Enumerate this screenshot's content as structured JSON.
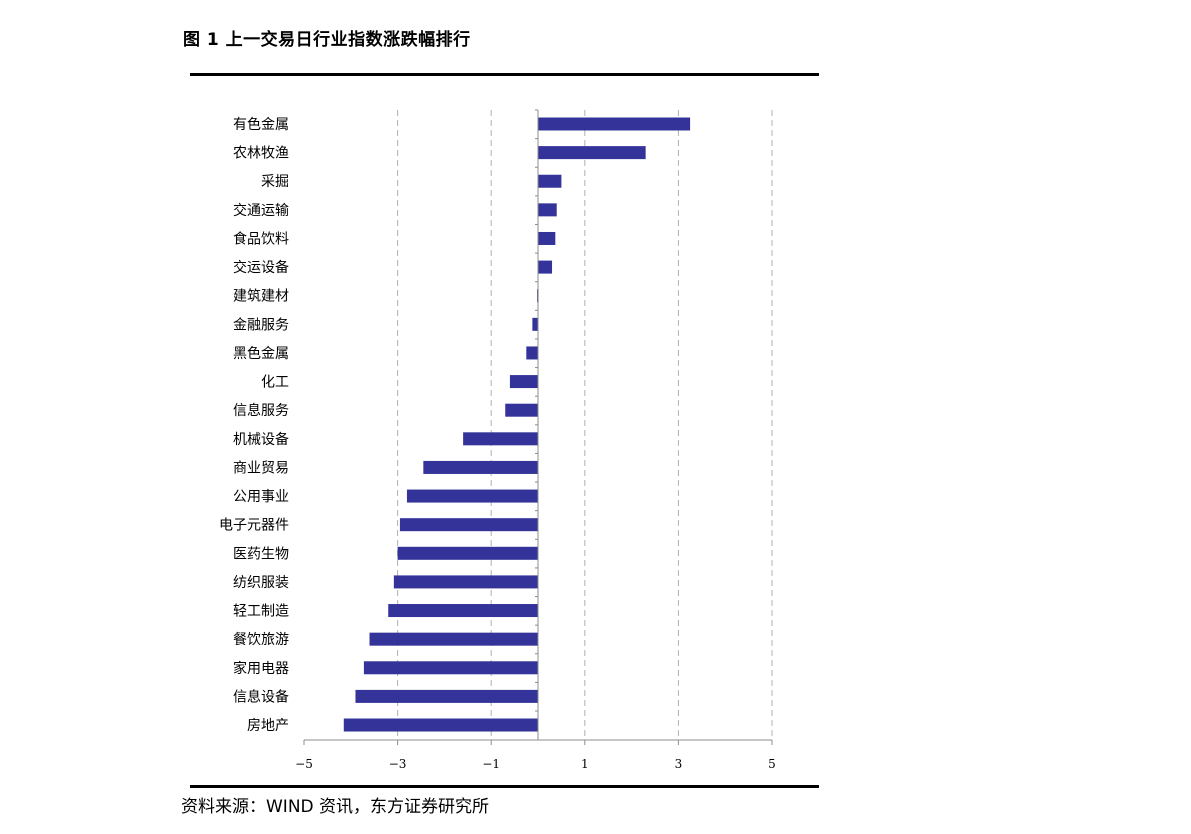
{
  "header": {
    "title": "图 1  上一交易日行业指数涨跌幅排行"
  },
  "footer": {
    "source": "资料来源：WIND 资讯，东方证券研究所"
  },
  "colors": {
    "bar": "#33339a",
    "grid": "#b0b0b0",
    "axis": "#8c8c8c"
  },
  "chart_data": {
    "type": "bar",
    "orientation": "horizontal",
    "title": "",
    "xlabel": "",
    "ylabel": "",
    "xlim": [
      -5,
      5
    ],
    "xticks": [
      -5,
      -3,
      -1,
      1,
      3,
      5
    ],
    "xtick_labels": [
      "−5",
      "−3",
      "−1",
      "1",
      "3",
      "5"
    ],
    "grid": "vertical dashed",
    "legend": "none",
    "categories": [
      "有色金属",
      "农林牧渔",
      "采掘",
      "交通运输",
      "食品饮料",
      "交运设备",
      "建筑建材",
      "金融服务",
      "黑色金属",
      "化工",
      "信息服务",
      "机械设备",
      "商业贸易",
      "公用事业",
      "电子元器件",
      "医药生物",
      "纺织服装",
      "轻工制造",
      "餐饮旅游",
      "家用电器",
      "信息设备",
      "房地产"
    ],
    "values": [
      3.25,
      2.3,
      0.5,
      0.4,
      0.37,
      0.3,
      -0.02,
      -0.12,
      -0.25,
      -0.6,
      -0.7,
      -1.6,
      -2.45,
      -2.8,
      -2.95,
      -3.0,
      -3.08,
      -3.2,
      -3.6,
      -3.72,
      -3.9,
      -4.15
    ]
  }
}
